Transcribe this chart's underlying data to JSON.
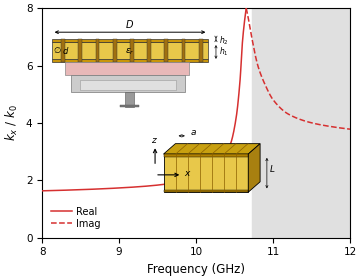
{
  "title": "",
  "xlabel": "Frequency (GHz)",
  "ylabel": "k_x / k_0",
  "xlim": [
    8,
    12
  ],
  "ylim": [
    0,
    8
  ],
  "xticks": [
    8,
    9,
    10,
    11,
    12
  ],
  "yticks": [
    0,
    2,
    4,
    6,
    8
  ],
  "line_color": "#d63030",
  "shaded_region_color": "#e0e0e0",
  "shaded_x_start": 10.72,
  "bg_color": "#ffffff",
  "legend_real": "Real",
  "legend_imag": "Imag",
  "real_f": [
    8.0,
    8.5,
    9.0,
    9.5,
    10.0,
    10.2,
    10.35,
    10.45,
    10.52,
    10.57,
    10.6,
    10.63,
    10.65
  ],
  "real_v": [
    1.63,
    1.67,
    1.73,
    1.83,
    2.08,
    2.35,
    2.75,
    3.3,
    4.2,
    5.5,
    6.8,
    7.6,
    8.0
  ],
  "imag_f": [
    10.65,
    10.68,
    10.72,
    10.8,
    10.9,
    11.0,
    11.2,
    11.5,
    11.8,
    12.0
  ],
  "imag_v": [
    8.0,
    7.6,
    7.0,
    6.0,
    5.3,
    4.8,
    4.3,
    4.0,
    3.85,
    3.78
  ]
}
